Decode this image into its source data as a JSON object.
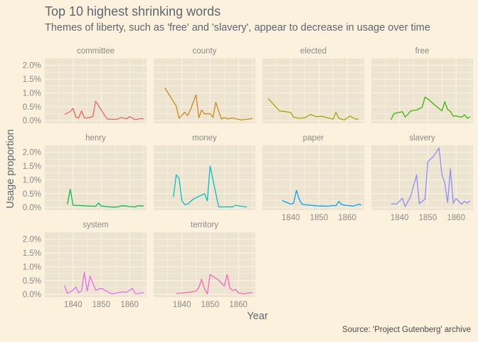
{
  "title": "Top 10 highest shrinking words",
  "subtitle": "Themes of liberty, such as 'free' and 'slavery', appear to decrease in usage over time",
  "caption": "Source: 'Project Gutenberg' archive",
  "colors": {
    "background": "#fbf1dc",
    "panel": "#ede4d0",
    "gridline": "#fbf5ea"
  },
  "chart_data": {
    "type": "line",
    "xlabel": "Year",
    "ylabel": "Usage proportion",
    "xlim": [
      1830,
      1866
    ],
    "ylim": [
      -0.001,
      0.0225
    ],
    "x_ticks": [
      1840,
      1850,
      1860
    ],
    "x_tick_labels": [
      "1840",
      "1850",
      "1860"
    ],
    "y_ticks": [
      0,
      0.005,
      0.01,
      0.015,
      0.02
    ],
    "y_tick_labels": [
      "0.0%",
      "0.5%",
      "1.0%",
      "1.5%",
      "2.0%"
    ],
    "facets": 4,
    "series": [
      {
        "name": "committee",
        "color": "#e8675d",
        "x": [
          1837,
          1839,
          1840,
          1841,
          1842,
          1843,
          1844,
          1845,
          1847,
          1848,
          1852,
          1853,
          1855,
          1856,
          1857,
          1858,
          1859,
          1860,
          1862,
          1864,
          1865
        ],
        "y": [
          0.0022,
          0.0032,
          0.0044,
          0.0012,
          0.001,
          0.0035,
          0.001,
          0.0009,
          0.0014,
          0.007,
          0.0006,
          0.0005,
          0.0004,
          0.0006,
          0.0011,
          0.0008,
          0.0006,
          0.0014,
          0.0003,
          0.0007,
          0.0006
        ]
      },
      {
        "name": "county",
        "color": "#c98a1e",
        "x": [
          1834,
          1838,
          1839,
          1841,
          1842,
          1843,
          1845,
          1846,
          1847,
          1848,
          1850,
          1851,
          1852,
          1853,
          1854,
          1855,
          1856,
          1858,
          1861,
          1865
        ],
        "y": [
          0.0118,
          0.0052,
          0.0008,
          0.003,
          0.0018,
          0.0038,
          0.0093,
          0.001,
          0.0038,
          0.0024,
          0.0025,
          0.0011,
          0.0066,
          0.0035,
          0.0005,
          0.0011,
          0.0006,
          0.0009,
          0.0002,
          0.0007
        ]
      },
      {
        "name": "elected",
        "color": "#a3a500",
        "x": [
          1832,
          1836,
          1838,
          1840,
          1841,
          1843,
          1845,
          1847,
          1849,
          1851,
          1853,
          1855,
          1856,
          1857,
          1858,
          1859,
          1861,
          1863,
          1864
        ],
        "y": [
          0.008,
          0.0035,
          0.0032,
          0.0029,
          0.0012,
          0.0008,
          0.001,
          0.0022,
          0.0014,
          0.0015,
          0.001,
          0.0005,
          0.003,
          0.0008,
          0.0005,
          0.0002,
          0.0016,
          0.0005,
          0.0006
        ]
      },
      {
        "name": "free",
        "color": "#39b600",
        "x": [
          1837,
          1838,
          1841,
          1842,
          1844,
          1846,
          1848,
          1849,
          1850,
          1851,
          1852,
          1855,
          1856,
          1857,
          1858,
          1859,
          1860,
          1862,
          1863,
          1864,
          1865
        ],
        "y": [
          0.0003,
          0.0025,
          0.0032,
          0.0012,
          0.0035,
          0.0038,
          0.0048,
          0.0085,
          0.0078,
          0.007,
          0.006,
          0.0035,
          0.0068,
          0.004,
          0.0033,
          0.0016,
          0.0016,
          0.0012,
          0.0021,
          0.0008,
          0.0013
        ]
      },
      {
        "name": "henry",
        "color": "#00bb4e",
        "x": [
          1838,
          1839,
          1840,
          1848,
          1849,
          1850,
          1852,
          1854,
          1856,
          1857,
          1859,
          1860,
          1862,
          1863,
          1865
        ],
        "y": [
          0.0012,
          0.0066,
          0.0008,
          0.0004,
          0.0016,
          0.0005,
          0.0003,
          0.0001,
          0.0002,
          0.0006,
          0.0005,
          0.0003,
          0.0002,
          0.0006,
          0.0005
        ]
      },
      {
        "name": "money",
        "color": "#00bfc4",
        "x": [
          1837,
          1838,
          1839,
          1840,
          1841,
          1842,
          1844,
          1847,
          1848,
          1849,
          1850,
          1851,
          1853,
          1855,
          1857,
          1858,
          1859,
          1861,
          1863
        ],
        "y": [
          0.0038,
          0.0118,
          0.0105,
          0.0025,
          0.001,
          0.0012,
          0.003,
          0.0045,
          0.005,
          0.0024,
          0.015,
          0.01,
          0.0002,
          0.0002,
          0.0002,
          0.0002,
          0.0008,
          0.0004,
          0.0002
        ]
      },
      {
        "name": "paper",
        "color": "#00a5ff",
        "x": [
          1837,
          1840,
          1841,
          1842,
          1843,
          1844,
          1845,
          1847,
          1849,
          1851,
          1852,
          1853,
          1855,
          1856,
          1857,
          1858,
          1859,
          1860,
          1862,
          1863,
          1864,
          1865
        ],
        "y": [
          0.0025,
          0.0012,
          0.0015,
          0.0062,
          0.003,
          0.0012,
          0.001,
          0.0008,
          0.0006,
          0.0005,
          0.0005,
          0.0004,
          0.0007,
          0.0006,
          0.0022,
          0.0011,
          0.0008,
          0.0007,
          0.0005,
          0.0007,
          0.0012,
          0.0009
        ]
      },
      {
        "name": "slavery",
        "color": "#8c8cff",
        "x": [
          1837,
          1839,
          1841,
          1842,
          1843,
          1844,
          1846,
          1847,
          1849,
          1850,
          1852,
          1854,
          1855,
          1856,
          1857,
          1858,
          1859,
          1860,
          1862,
          1863,
          1864,
          1865
        ],
        "y": [
          0.0013,
          0.0013,
          0.0033,
          0.0003,
          0.0022,
          0.0042,
          0.0118,
          0.0014,
          0.003,
          0.0165,
          0.0185,
          0.0215,
          0.0118,
          0.0088,
          0.0018,
          0.014,
          0.0015,
          0.0032,
          0.0012,
          0.0022,
          0.0016,
          0.0024
        ]
      },
      {
        "name": "system",
        "color": "#e76bf3",
        "x": [
          1837,
          1838,
          1840,
          1841,
          1842,
          1843,
          1844,
          1845,
          1846,
          1848,
          1850,
          1853,
          1854,
          1857,
          1859,
          1860,
          1861,
          1862,
          1863,
          1865
        ],
        "y": [
          0.0032,
          0.0003,
          0.0015,
          0.0027,
          0.0006,
          0.0013,
          0.008,
          0.0012,
          0.0066,
          0.0015,
          0.0022,
          0.0005,
          0.0002,
          0.0008,
          0.0008,
          0.0015,
          0.0022,
          0.0003,
          0.0003,
          0.0006
        ]
      },
      {
        "name": "territory",
        "color": "#ff62bc",
        "x": [
          1838,
          1843,
          1845,
          1846,
          1847,
          1848,
          1849,
          1850,
          1853,
          1855,
          1856,
          1857,
          1858,
          1859,
          1860,
          1862,
          1864,
          1865
        ],
        "y": [
          0.0003,
          0.0008,
          0.0012,
          0.0025,
          0.0055,
          0.002,
          0.0002,
          0.0072,
          0.0052,
          0.003,
          0.0072,
          0.0022,
          0.0014,
          0.0018,
          0.0005,
          0.0002,
          0.0006,
          0.0005
        ]
      }
    ]
  }
}
